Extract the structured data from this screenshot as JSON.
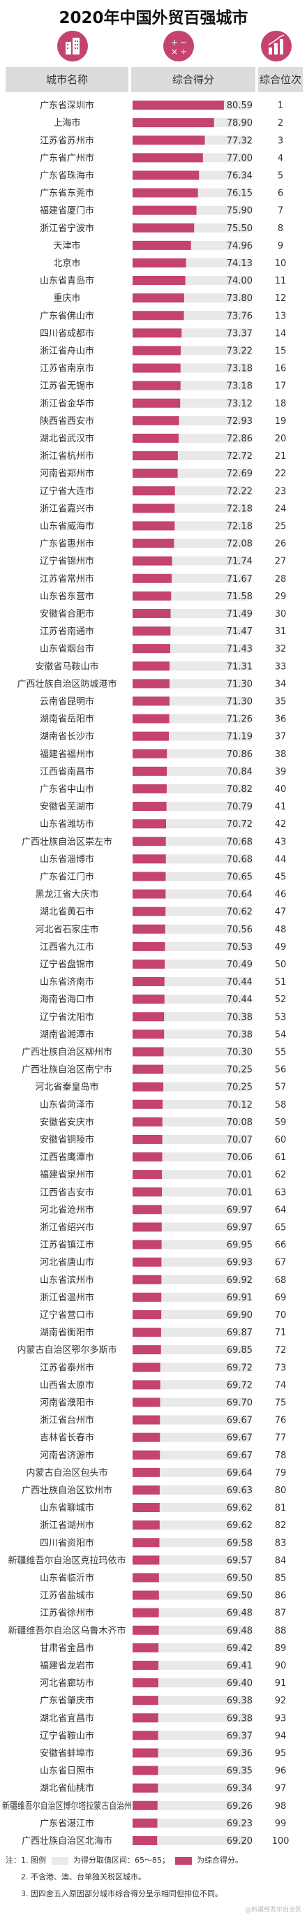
{
  "title": "2020年中国外贸百强城市",
  "headers": {
    "city": "城市名称",
    "score": "综合得分",
    "rank": "综合位次"
  },
  "colors": {
    "bar": "#c4436f",
    "bar_bg": "#e9e9e9",
    "header_bg": "#dcdcdc",
    "icon_bg": "#c4436f"
  },
  "icons": {
    "city": "city-buildings-icon",
    "score": "calculator-icon",
    "rank": "ranking-chart-icon"
  },
  "notes": {
    "n1_prefix": "注：1. 图例",
    "n1_range": "为得分取值区间：65～85；",
    "n1_legend": "为综合得分。",
    "n2": "2. 不含港、澳、台单独关税区城市。",
    "n3": "3. 因四舍五入原因部分城市综合得分呈示相同但排位不同。"
  },
  "watermark": "@新疆维吾尔自治区",
  "chart_data": {
    "type": "bar",
    "orientation": "horizontal",
    "xlim": [
      65,
      85
    ],
    "categories": [
      "广东省深圳市",
      "上海市",
      "江苏省苏州市",
      "广东省广州市",
      "广东省珠海市",
      "广东省东莞市",
      "福建省厦门市",
      "浙江省宁波市",
      "天津市",
      "北京市",
      "山东省青岛市",
      "重庆市",
      "广东省佛山市",
      "四川省成都市",
      "浙江省舟山市",
      "江苏省南京市",
      "江苏省无锡市",
      "浙江省金华市",
      "陕西省西安市",
      "湖北省武汉市",
      "浙江省杭州市",
      "河南省郑州市",
      "辽宁省大连市",
      "浙江省嘉兴市",
      "山东省威海市",
      "广东省惠州市",
      "辽宁省锦州市",
      "江苏省常州市",
      "山东省东营市",
      "安徽省合肥市",
      "江苏省南通市",
      "山东省烟台市",
      "安徽省马鞍山市",
      "广西壮族自治区防城港市",
      "云南省昆明市",
      "湖南省岳阳市",
      "湖南省长沙市",
      "福建省福州市",
      "江西省南昌市",
      "广东省中山市",
      "安徽省芜湖市",
      "山东省潍坊市",
      "广西壮族自治区崇左市",
      "山东省淄博市",
      "广东省江门市",
      "黑龙江省大庆市",
      "湖北省黄石市",
      "河北省石家庄市",
      "江西省九江市",
      "辽宁省盘锦市",
      "山东省济南市",
      "海南省海口市",
      "辽宁省沈阳市",
      "湖南省湘潭市",
      "广西壮族自治区柳州市",
      "广西壮族自治区南宁市",
      "河北省秦皇岛市",
      "山东省菏泽市",
      "安徽省安庆市",
      "安徽省铜陵市",
      "江西省鹰潭市",
      "福建省泉州市",
      "江西省吉安市",
      "河北省沧州市",
      "浙江省绍兴市",
      "江苏省镇江市",
      "河北省唐山市",
      "山东省滨州市",
      "浙江省温州市",
      "辽宁省营口市",
      "湖南省衡阳市",
      "内蒙古自治区鄂尔多斯市",
      "江苏省泰州市",
      "山西省太原市",
      "河南省濮阳市",
      "浙江省台州市",
      "吉林省长春市",
      "河南省济源市",
      "内蒙古自治区包头市",
      "广西壮族自治区钦州市",
      "山东省聊城市",
      "浙江省湖州市",
      "四川省资阳市",
      "新疆维吾尔自治区克拉玛依市",
      "山东省临沂市",
      "江苏省盐城市",
      "江苏省徐州市",
      "新疆维吾尔自治区乌鲁木齐市",
      "甘肃省金昌市",
      "福建省龙岩市",
      "河北省廊坊市",
      "广东省肇庆市",
      "湖北省宜昌市",
      "辽宁省鞍山市",
      "安徽省蚌埠市",
      "山东省日照市",
      "湖北省仙桃市",
      "新疆维吾尔自治区博尔塔拉蒙古自治州",
      "广东省湛江市",
      "广西壮族自治区北海市"
    ],
    "values": [
      80.59,
      78.9,
      77.32,
      77.0,
      76.34,
      76.15,
      75.9,
      75.5,
      74.96,
      74.13,
      74.0,
      73.8,
      73.76,
      73.37,
      73.22,
      73.18,
      73.18,
      73.12,
      72.93,
      72.86,
      72.72,
      72.69,
      72.22,
      72.18,
      72.18,
      72.08,
      71.74,
      71.67,
      71.58,
      71.49,
      71.47,
      71.43,
      71.31,
      71.3,
      71.3,
      71.26,
      71.19,
      70.86,
      70.84,
      70.82,
      70.79,
      70.72,
      70.68,
      70.68,
      70.65,
      70.64,
      70.62,
      70.56,
      70.53,
      70.49,
      70.44,
      70.44,
      70.38,
      70.38,
      70.3,
      70.25,
      70.25,
      70.12,
      70.08,
      70.07,
      70.06,
      70.01,
      70.01,
      69.97,
      69.97,
      69.95,
      69.93,
      69.92,
      69.91,
      69.9,
      69.87,
      69.85,
      69.72,
      69.72,
      69.7,
      69.67,
      69.67,
      69.67,
      69.64,
      69.63,
      69.62,
      69.62,
      69.58,
      69.57,
      69.5,
      69.5,
      69.48,
      69.48,
      69.42,
      69.41,
      69.4,
      69.38,
      69.38,
      69.37,
      69.36,
      69.35,
      69.34,
      69.26,
      69.23,
      69.2
    ],
    "ranks": [
      "1",
      "2",
      "3",
      "4",
      "5",
      "6",
      "7",
      "8",
      "9",
      "10",
      "11",
      "12",
      "13",
      "14",
      "15",
      "16",
      "17",
      "18",
      "19",
      "20",
      "21",
      "22",
      "23",
      "24",
      "25",
      "26",
      "27",
      "28",
      "29",
      "30",
      "31",
      "32",
      "33",
      "34",
      "35",
      "36",
      "37",
      "38",
      "39",
      "40",
      "41",
      "42",
      "43",
      "44",
      "45",
      "46",
      "47",
      "48",
      "49",
      "50",
      "51",
      "52",
      "53",
      "54",
      "55",
      "56",
      "57",
      "58",
      "59",
      "60",
      "61",
      "62",
      "63",
      "64",
      "65",
      "66",
      "67",
      "68",
      "69",
      "70",
      "71",
      "72",
      "73",
      "74",
      "75",
      "76",
      "77",
      "78",
      "79",
      "80",
      "81",
      "82",
      "83",
      "84",
      "85",
      "86",
      "87",
      "88",
      "89",
      "90",
      "91",
      "92",
      "93",
      "94",
      "95",
      "96",
      "97",
      "98",
      "99",
      "100"
    ],
    "value_labels": [
      "80.59",
      "78.90",
      "77.32",
      "77.00",
      "76.34",
      "76.15",
      "75.90",
      "75.50",
      "74.96",
      "74.13",
      "74.00",
      "73.80",
      "73.76",
      "73.37",
      "73.22",
      "73.18",
      "73.18",
      "73.12",
      "72.93",
      "72.86",
      "72.72",
      "72.69",
      "72.22",
      "72.18",
      "72.18",
      "72.08",
      "71.74",
      "71.67",
      "71.58",
      "71.49",
      "71.47",
      "71.43",
      "71.31",
      "71.30",
      "71.30",
      "71.26",
      "71.19",
      "70.86",
      "70.84",
      "70.82",
      "70.79",
      "70.72",
      "70.68",
      "70.68",
      "70.65",
      "70.64",
      "70.62",
      "70.56",
      "70.53",
      "70.49",
      "70.44",
      "70.44",
      "70.38",
      "70.38",
      "70.30",
      "70.25",
      "70.25",
      "70.12",
      "70.08",
      "70.07",
      "70.06",
      "70.01",
      "70.01",
      "69.97",
      "69.97",
      "69.95",
      "69.93",
      "69.92",
      "69.91",
      "69.90",
      "69.87",
      "69.85",
      "69.72",
      "69.72",
      "69.70",
      "69.67",
      "69.67",
      "69.67",
      "69.64",
      "69.63",
      "69.62",
      "69.62",
      "69.58",
      "69.57",
      "69.50",
      "69.50",
      "69.48",
      "69.48",
      "69.42",
      "69.41",
      "69.40",
      "69.38",
      "69.38",
      "69.37",
      "69.36",
      "69.35",
      "69.34",
      "69.26",
      "69.23",
      "69.20"
    ]
  }
}
